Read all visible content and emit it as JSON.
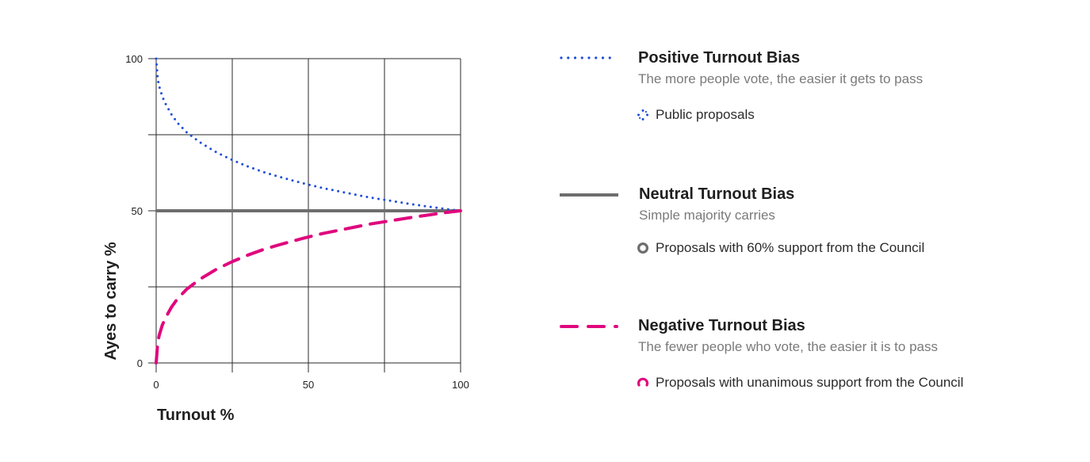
{
  "chart_data": {
    "type": "line",
    "title": "",
    "xlabel": "Turnout %",
    "ylabel": "Ayes to carry %",
    "xlim": [
      0,
      100
    ],
    "ylim": [
      0,
      100
    ],
    "x_ticks": [
      "0",
      "50",
      "100"
    ],
    "y_ticks": [
      "0",
      "50",
      "100"
    ],
    "grid": true,
    "x_grid_step": 25,
    "y_grid_step": 25,
    "series": [
      {
        "name": "Positive Turnout Bias",
        "style": "dotted",
        "color": "#1f4fd8",
        "x": [
          0,
          0.5,
          1,
          2,
          3,
          5,
          7,
          10,
          12.5,
          15,
          20,
          25,
          30,
          35,
          40,
          45,
          50,
          55,
          60,
          65,
          70,
          75,
          80,
          85,
          90,
          95,
          100
        ],
        "y": [
          100,
          93.4,
          90.9,
          87.6,
          85.3,
          81.7,
          78.9,
          75.8,
          73.9,
          72.1,
          69.1,
          66.7,
          64.6,
          62.8,
          61.3,
          59.9,
          58.6,
          57.4,
          56.4,
          55.4,
          54.4,
          53.6,
          52.8,
          52.0,
          51.3,
          50.6,
          50
        ]
      },
      {
        "name": "Neutral Turnout Bias",
        "style": "solid",
        "color": "#6e6e6e",
        "x": [
          0,
          100
        ],
        "y": [
          50,
          50
        ]
      },
      {
        "name": "Negative Turnout Bias",
        "style": "dashed",
        "color": "#e0077d",
        "x": [
          0,
          0.5,
          1,
          2,
          3,
          5,
          7,
          10,
          12.5,
          15,
          20,
          25,
          30,
          35,
          40,
          45,
          50,
          55,
          60,
          65,
          70,
          75,
          80,
          85,
          90,
          95,
          100
        ],
        "y": [
          0,
          6.6,
          9.1,
          12.4,
          14.7,
          18.3,
          21.1,
          24.2,
          26.1,
          27.9,
          30.9,
          33.3,
          35.4,
          37.2,
          38.7,
          40.1,
          41.4,
          42.6,
          43.6,
          44.6,
          45.6,
          46.4,
          47.2,
          48.0,
          48.7,
          49.4,
          50
        ]
      }
    ]
  },
  "legend": {
    "positive": {
      "title": "Positive Turnout Bias",
      "description": "The more people vote, the easier it gets to pass",
      "example": "Public proposals",
      "color": "#1f4fd8",
      "icon": "dotted-ring-icon"
    },
    "neutral": {
      "title": "Neutral Turnout Bias",
      "description": "Simple majority carries",
      "example": "Proposals with 60% support from the Council",
      "color": "#6e6e6e",
      "icon": "gray-ring-icon"
    },
    "negative": {
      "title": "Negative Turnout Bias",
      "description": "The fewer people who vote, the easier it is to pass",
      "example": "Proposals with unanimous support from the Council",
      "color": "#e0077d",
      "icon": "pink-arc-icon"
    }
  }
}
